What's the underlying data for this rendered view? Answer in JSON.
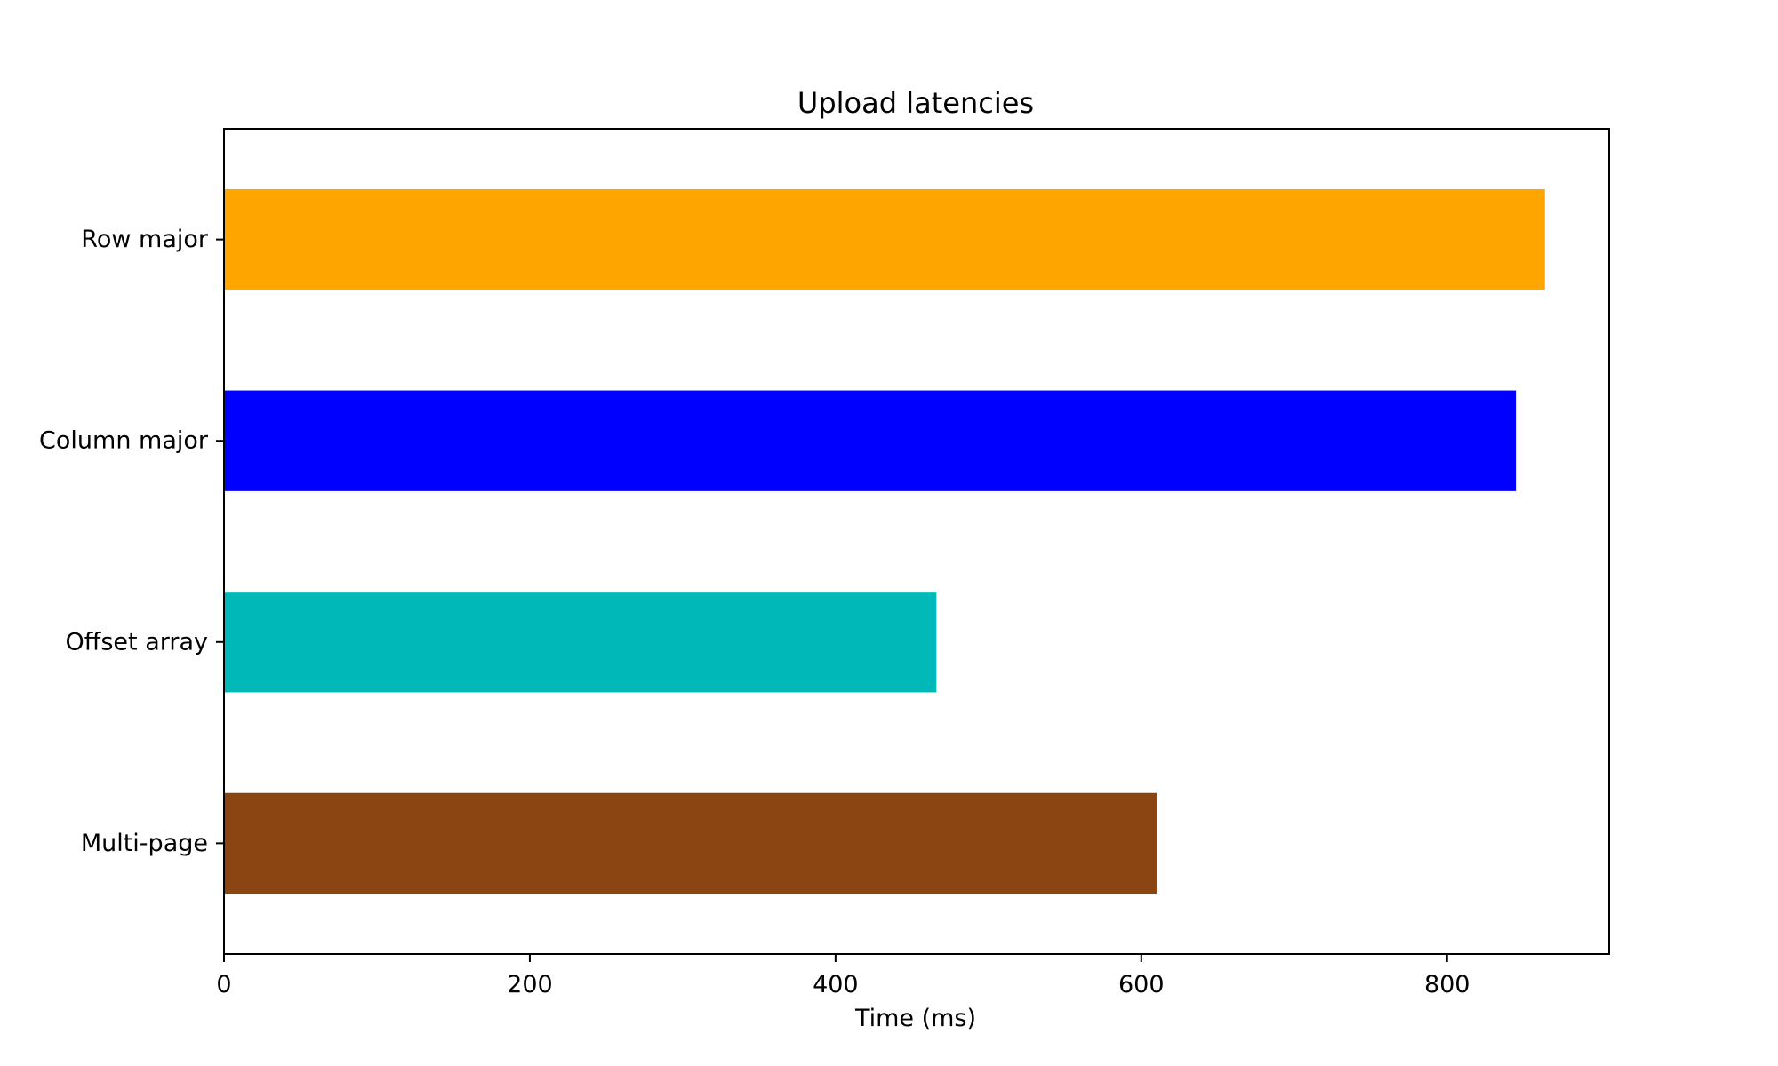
{
  "chart_data": {
    "type": "bar",
    "orientation": "horizontal",
    "title": "Upload latencies",
    "xlabel": "Time (ms)",
    "ylabel": "",
    "xlim": [
      0,
      906
    ],
    "xticks": [
      0,
      200,
      400,
      600,
      800
    ],
    "categories": [
      "Row major",
      "Column major",
      "Offset array",
      "Multi-page"
    ],
    "values": [
      864,
      845,
      466,
      610
    ],
    "colors": [
      "#ffa500",
      "#0000ff",
      "#00b8b8",
      "#8b4513"
    ],
    "grid": false,
    "legend": "none"
  }
}
